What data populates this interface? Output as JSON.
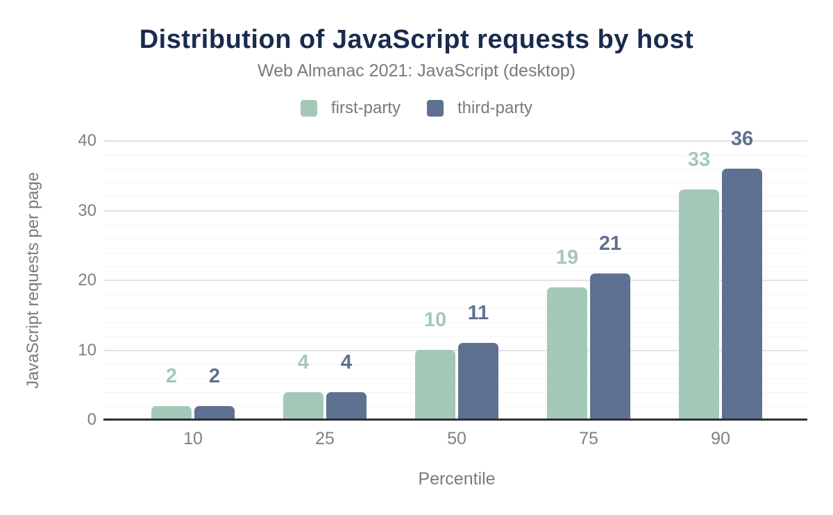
{
  "chart_data": {
    "type": "bar",
    "title": "Distribution of JavaScript requests by host",
    "subtitle": "Web Almanac 2021: JavaScript (desktop)",
    "categories": [
      "10",
      "25",
      "50",
      "75",
      "90"
    ],
    "series": [
      {
        "name": "first-party",
        "color": "#a4c8b7",
        "values": [
          2,
          4,
          10,
          19,
          33
        ]
      },
      {
        "name": "third-party",
        "color": "#5f7190",
        "values": [
          2,
          4,
          11,
          21,
          36
        ]
      }
    ],
    "xlabel": "Percentile",
    "ylabel": "JavaScript requests per page",
    "ylim": [
      0,
      40
    ],
    "yticks": [
      0,
      10,
      20,
      30,
      40
    ],
    "minor_grid_step": 2,
    "grid": true,
    "legend_position": "top",
    "data_labels": true
  },
  "colors": {
    "title_text": "#1a2b4d",
    "subtitle_text": "#7a7a7a",
    "tick_text": "#808080",
    "axis_line": "#2e2e33",
    "grid_major": "#e2e2e2",
    "grid_minor": "#f4f4f4",
    "background": "#ffffff"
  }
}
